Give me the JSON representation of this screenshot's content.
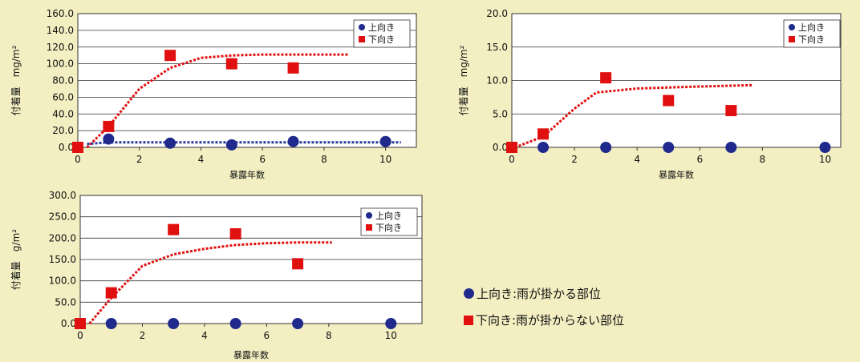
{
  "colors": {
    "background": "#f3efc2",
    "up_marker": "#1f2a8c",
    "down_marker": "#e01010",
    "down_trend": "#e01010",
    "up_trend": "#2a3a9a"
  },
  "chart_data": [
    {
      "id": "chart-top-left",
      "type": "scatter",
      "xlabel": "暴露年数",
      "ylabel": "付着量　mg/m²",
      "xlim": [
        0,
        11
      ],
      "ylim": [
        0,
        160
      ],
      "xticks": [
        "0",
        "2",
        "4",
        "6",
        "8",
        "10"
      ],
      "xtick_values": [
        0,
        2,
        4,
        6,
        8,
        10
      ],
      "yticks": [
        "0.0",
        "20.0",
        "40.0",
        "60.0",
        "80.0",
        "100.0",
        "120.0",
        "140.0",
        "160.0"
      ],
      "ytick_values": [
        0,
        20,
        40,
        60,
        80,
        100,
        120,
        140,
        160
      ],
      "grid": true,
      "legend_position": "top-right",
      "legend": [
        "上向き",
        "下向き"
      ],
      "series": [
        {
          "name": "上向き",
          "marker": "circle",
          "x": [
            1,
            3,
            5,
            7,
            10
          ],
          "y": [
            10,
            5,
            3,
            7,
            7
          ]
        },
        {
          "name": "下向き",
          "marker": "square",
          "x": [
            0,
            1,
            3,
            5,
            7
          ],
          "y": [
            0,
            25,
            110,
            100,
            95
          ]
        }
      ],
      "trendlines": [
        {
          "series": "下向き",
          "x": [
            0.3,
            1,
            2,
            3,
            4,
            5,
            6,
            7,
            8,
            8.8
          ],
          "y": [
            0,
            25,
            70,
            95,
            107,
            110,
            111,
            111,
            111,
            111
          ]
        },
        {
          "series": "上向き",
          "x": [
            0.3,
            1,
            2,
            4,
            6,
            8,
            10.5
          ],
          "y": [
            4,
            6,
            6,
            6,
            6,
            6,
            6
          ]
        }
      ]
    },
    {
      "id": "chart-top-right",
      "type": "scatter",
      "xlabel": "暴露年数",
      "ylabel": "付着量　mg/m²",
      "xlim": [
        0,
        10.5
      ],
      "ylim": [
        0,
        20
      ],
      "xticks": [
        "0",
        "2",
        "4",
        "6",
        "8",
        "10"
      ],
      "xtick_values": [
        0,
        2,
        4,
        6,
        8,
        10
      ],
      "yticks": [
        "0.0",
        "5.0",
        "10.0",
        "15.0",
        "20.0"
      ],
      "ytick_values": [
        0,
        5,
        10,
        15,
        20
      ],
      "grid": true,
      "legend_position": "top-right",
      "legend": [
        "上向き",
        "下向き"
      ],
      "series": [
        {
          "name": "上向き",
          "marker": "circle",
          "x": [
            1,
            3,
            5,
            7,
            10
          ],
          "y": [
            0,
            0,
            0,
            0,
            0
          ]
        },
        {
          "name": "下向き",
          "marker": "square",
          "x": [
            0,
            1,
            3,
            5,
            7
          ],
          "y": [
            0,
            2,
            10.4,
            7,
            5.5
          ]
        }
      ],
      "trendlines": [
        {
          "series": "下向き",
          "x": [
            0.1,
            1,
            2,
            2.7,
            4,
            6,
            7.7
          ],
          "y": [
            0,
            1.6,
            5.8,
            8.2,
            8.8,
            9.1,
            9.3
          ]
        }
      ]
    },
    {
      "id": "chart-bottom-left",
      "type": "scatter",
      "xlabel": "暴露年数",
      "ylabel": "付着量　g/m²",
      "xlim": [
        0,
        11
      ],
      "ylim": [
        0,
        300
      ],
      "xticks": [
        "0",
        "2",
        "4",
        "6",
        "8",
        "10"
      ],
      "xtick_values": [
        0,
        2,
        4,
        6,
        8,
        10
      ],
      "yticks": [
        "0.0",
        "50.0",
        "100.0",
        "150.0",
        "200.0",
        "250.0",
        "300.0"
      ],
      "ytick_values": [
        0,
        50,
        100,
        150,
        200,
        250,
        300
      ],
      "grid": true,
      "legend_position": "top-right",
      "legend": [
        "上向き",
        "下向き"
      ],
      "series": [
        {
          "name": "上向き",
          "marker": "circle",
          "x": [
            1,
            3,
            5,
            7,
            10
          ],
          "y": [
            0,
            0,
            0,
            0,
            0
          ]
        },
        {
          "name": "下向き",
          "marker": "square",
          "x": [
            0,
            1,
            3,
            5,
            7
          ],
          "y": [
            0,
            72,
            220,
            210,
            140
          ]
        }
      ],
      "trendlines": [
        {
          "series": "下向き",
          "x": [
            0.3,
            1,
            2,
            3,
            4,
            5,
            6,
            7,
            8.1
          ],
          "y": [
            0,
            60,
            135,
            162,
            175,
            184,
            188,
            190,
            190
          ]
        }
      ]
    }
  ],
  "notes": {
    "up": "上向き:雨が掛かる部位",
    "down": "下向き:雨が掛からない部位"
  }
}
